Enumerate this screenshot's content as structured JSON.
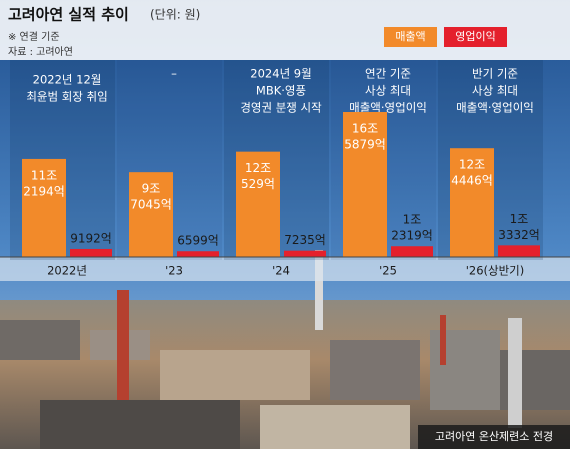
{
  "chart_data": {
    "type": "bar",
    "title": "고려아연 실적 추이",
    "unit_note": "(단위: 원)",
    "notes": [
      "※ 연결 기준",
      "자료 : 고려아연"
    ],
    "caption": "고려아연 온산제련소 전경",
    "categories": [
      "2022년",
      "'23",
      "'24",
      "'25",
      "'26(상반기)"
    ],
    "annotations": [
      [
        "2022년 12월",
        "최윤범 회장 취임"
      ],
      [
        "–"
      ],
      [
        "2024년 9월",
        "MBK·영풍",
        "경영권 분쟁 시작"
      ],
      [
        "연간 기준",
        "사상 최대",
        "매출액·영업이익"
      ],
      [
        "반기 기준",
        "사상 최대",
        "매출액·영업이익"
      ]
    ],
    "series": [
      {
        "name": "매출액",
        "color": "#f28a2a",
        "values": [
          112194,
          97045,
          120529,
          165879,
          124446
        ],
        "value_labels": [
          [
            "11조",
            "2194억"
          ],
          [
            "9조",
            "7045억"
          ],
          [
            "12조",
            "529억"
          ],
          [
            "16조",
            "5879억"
          ],
          [
            "12조",
            "4446억"
          ]
        ]
      },
      {
        "name": "영업이익",
        "color": "#e4202c",
        "values": [
          9192,
          6599,
          7235,
          12319,
          13332
        ],
        "value_labels": [
          [
            "9192억"
          ],
          [
            "6599억"
          ],
          [
            "7235억"
          ],
          [
            "1조",
            "2319억"
          ],
          [
            "1조",
            "3332억"
          ]
        ]
      }
    ]
  }
}
